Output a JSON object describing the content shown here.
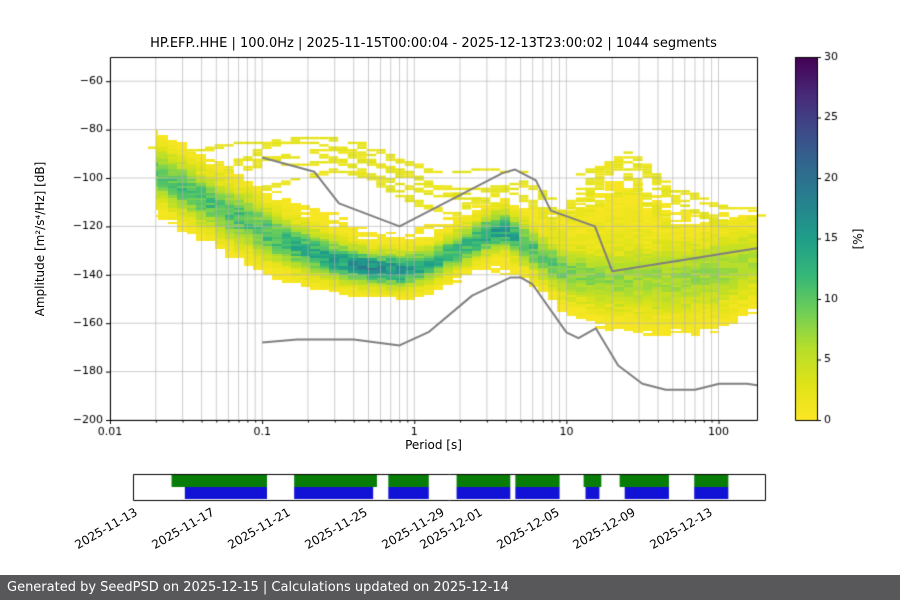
{
  "chart_data": {
    "type": "heatmap",
    "title": "HP.EFP..HHE | 100.0Hz | 2025-11-15T00:00:04 - 2025-12-13T23:00:02 | 1044 segments",
    "xlabel": "Period [s]",
    "ylabel": "Amplitude [m²/s⁴/Hz] [dB]",
    "xscale": "log",
    "xlim": [
      0.01,
      179
    ],
    "ylim": [
      -200,
      -50
    ],
    "grid": true,
    "xticks": [
      0.01,
      0.1,
      1,
      10,
      100
    ],
    "xtick_labels": [
      "0.01",
      "0.1",
      "1",
      "10",
      "100"
    ],
    "yticks": [
      -60,
      -80,
      -100,
      -120,
      -140,
      -160,
      -180,
      -200
    ],
    "ytick_labels": [
      "−60",
      "−80",
      "−100",
      "−120",
      "−140",
      "−160",
      "−180",
      "−200"
    ],
    "colorbar": {
      "label": "[%]",
      "min": 0,
      "max": 30,
      "ticks": [
        0,
        5,
        10,
        15,
        20,
        25,
        30
      ],
      "colormap": "viridis_r",
      "stops": [
        "#440154",
        "#482878",
        "#3e4a89",
        "#31688e",
        "#26828e",
        "#1f9e89",
        "#35b779",
        "#6ece58",
        "#b5de2b",
        "#dfe318",
        "#fde725"
      ]
    },
    "noise_models": {
      "color": "#7f7f7f",
      "nhnm": [
        [
          0.1,
          -91.5
        ],
        [
          0.22,
          -97.4
        ],
        [
          0.32,
          -110.5
        ],
        [
          0.8,
          -120
        ],
        [
          3.8,
          -98
        ],
        [
          4.6,
          -96.5
        ],
        [
          6.3,
          -101
        ],
        [
          7.9,
          -113.5
        ],
        [
          15.4,
          -120
        ],
        [
          20,
          -138.5
        ],
        [
          179,
          -129
        ]
      ],
      "nlnm": [
        [
          0.1,
          -168
        ],
        [
          0.17,
          -166.7
        ],
        [
          0.4,
          -166.7
        ],
        [
          0.8,
          -169.2
        ],
        [
          1.24,
          -163.7
        ],
        [
          2.4,
          -148.6
        ],
        [
          4.3,
          -141.1
        ],
        [
          5,
          -141.1
        ],
        [
          6,
          -144
        ],
        [
          10,
          -163.8
        ],
        [
          12,
          -166.2
        ],
        [
          15.6,
          -162.1
        ],
        [
          21.9,
          -177.5
        ],
        [
          31.6,
          -185
        ],
        [
          45,
          -187.5
        ],
        [
          70,
          -187.5
        ],
        [
          101,
          -185
        ],
        [
          154,
          -185
        ],
        [
          179,
          -185.6
        ]
      ]
    },
    "ppsd": {
      "period_range": [
        0.02,
        179
      ],
      "mode": [
        [
          0.02,
          -98
        ],
        [
          0.03,
          -104
        ],
        [
          0.05,
          -112
        ],
        [
          0.08,
          -118
        ],
        [
          0.1,
          -122
        ],
        [
          0.15,
          -127
        ],
        [
          0.2,
          -130
        ],
        [
          0.3,
          -134
        ],
        [
          0.5,
          -137
        ],
        [
          0.8,
          -138
        ],
        [
          1.2,
          -136
        ],
        [
          2,
          -129
        ],
        [
          3,
          -123
        ],
        [
          3.8,
          -121
        ],
        [
          5,
          -126
        ],
        [
          7,
          -133
        ],
        [
          10,
          -139
        ],
        [
          15,
          -141
        ],
        [
          25,
          -142
        ],
        [
          50,
          -141
        ],
        [
          100,
          -139
        ],
        [
          179,
          -134
        ]
      ],
      "peak": [
        [
          0.02,
          10
        ],
        [
          0.05,
          11
        ],
        [
          0.1,
          11
        ],
        [
          0.3,
          14
        ],
        [
          0.5,
          17
        ],
        [
          0.8,
          16
        ],
        [
          1.2,
          13
        ],
        [
          2,
          12
        ],
        [
          3,
          14
        ],
        [
          3.8,
          15
        ],
        [
          5,
          12
        ],
        [
          7,
          10
        ],
        [
          10,
          9
        ],
        [
          15,
          8
        ],
        [
          25,
          7
        ],
        [
          50,
          7
        ],
        [
          100,
          7
        ],
        [
          179,
          6
        ]
      ],
      "sigma": [
        [
          0.02,
          7
        ],
        [
          0.1,
          7
        ],
        [
          0.5,
          4.5
        ],
        [
          0.8,
          4.5
        ],
        [
          2,
          5
        ],
        [
          3.8,
          5
        ],
        [
          7,
          6
        ],
        [
          10,
          7
        ],
        [
          25,
          9
        ],
        [
          50,
          10
        ],
        [
          100,
          10
        ],
        [
          179,
          9
        ]
      ],
      "halo_up": [
        [
          0.02,
          -86
        ],
        [
          0.05,
          -93
        ],
        [
          0.1,
          -100
        ],
        [
          0.3,
          -112
        ],
        [
          0.5,
          -118
        ],
        [
          0.8,
          -120
        ],
        [
          1.5,
          -115
        ],
        [
          3,
          -107
        ],
        [
          5,
          -108
        ],
        [
          8,
          -112
        ],
        [
          12,
          -108
        ],
        [
          20,
          -101
        ],
        [
          30,
          -100
        ],
        [
          50,
          -110
        ],
        [
          100,
          -116
        ],
        [
          179,
          -118
        ]
      ],
      "halo_down": [
        [
          0.02,
          -116
        ],
        [
          0.1,
          -136
        ],
        [
          0.3,
          -144
        ],
        [
          0.5,
          -147
        ],
        [
          0.8,
          -148
        ],
        [
          1.5,
          -146
        ],
        [
          3,
          -140
        ],
        [
          5,
          -142
        ],
        [
          8,
          -150
        ],
        [
          12,
          -155
        ],
        [
          20,
          -158
        ],
        [
          30,
          -160
        ],
        [
          50,
          -159
        ],
        [
          100,
          -155
        ],
        [
          179,
          -148
        ]
      ],
      "halo_peak": [
        [
          0.02,
          1.6
        ],
        [
          0.1,
          1.6
        ],
        [
          1,
          1.6
        ],
        [
          5,
          1.8
        ],
        [
          10,
          2.2
        ],
        [
          20,
          3
        ],
        [
          30,
          2.6
        ],
        [
          50,
          2
        ],
        [
          179,
          1.6
        ]
      ]
    },
    "outlier_traces": [
      [
        [
          0.05,
          -100
        ],
        [
          0.1,
          -88
        ],
        [
          0.2,
          -83
        ],
        [
          0.4,
          -85
        ],
        [
          0.8,
          -93
        ],
        [
          1.5,
          -98
        ],
        [
          3,
          -96
        ],
        [
          5,
          -98
        ]
      ],
      [
        [
          0.07,
          -97
        ],
        [
          0.15,
          -90
        ],
        [
          0.3,
          -88
        ],
        [
          0.6,
          -95
        ],
        [
          1.2,
          -103
        ],
        [
          2.5,
          -105
        ]
      ],
      [
        [
          0.1,
          -105
        ],
        [
          0.3,
          -97
        ],
        [
          0.7,
          -101
        ],
        [
          1.5,
          -108
        ],
        [
          3,
          -105
        ],
        [
          5,
          -102
        ],
        [
          8,
          -109
        ]
      ],
      [
        [
          0.04,
          -95
        ],
        [
          0.1,
          -92
        ],
        [
          0.25,
          -90
        ],
        [
          0.5,
          -99
        ],
        [
          1,
          -110
        ],
        [
          2,
          -116
        ]
      ],
      [
        [
          8,
          -118
        ],
        [
          12,
          -108
        ],
        [
          20,
          -92
        ],
        [
          30,
          -95
        ],
        [
          50,
          -108
        ],
        [
          80,
          -115
        ],
        [
          120,
          -119
        ],
        [
          178,
          -116
        ]
      ],
      [
        [
          10,
          -121
        ],
        [
          15,
          -105
        ],
        [
          25,
          -90
        ],
        [
          40,
          -100
        ],
        [
          60,
          -112
        ],
        [
          100,
          -120
        ],
        [
          150,
          -122
        ]
      ],
      [
        [
          7,
          -112
        ],
        [
          12,
          -115
        ],
        [
          20,
          -108
        ],
        [
          35,
          -104
        ],
        [
          60,
          -106
        ],
        [
          100,
          -112
        ],
        [
          170,
          -113
        ]
      ],
      [
        [
          2,
          -113
        ],
        [
          4,
          -104
        ],
        [
          6,
          -110
        ],
        [
          10,
          -126
        ]
      ],
      [
        [
          0.02,
          -88
        ],
        [
          0.03,
          -90
        ],
        [
          0.06,
          -86
        ],
        [
          0.12,
          -85
        ],
        [
          0.25,
          -86
        ],
        [
          0.5,
          -91
        ]
      ],
      [
        [
          12,
          -100
        ],
        [
          18,
          -95
        ],
        [
          25,
          -97
        ],
        [
          35,
          -110
        ],
        [
          50,
          -121
        ]
      ],
      [
        [
          0.15,
          -95
        ],
        [
          0.4,
          -92
        ],
        [
          0.9,
          -98
        ],
        [
          2,
          -108
        ],
        [
          4,
          -112
        ]
      ]
    ]
  },
  "timeline": {
    "start": "2025-11-13",
    "end": "2025-12-16",
    "colors": {
      "green": "#077d07",
      "blue": "#1212d6"
    },
    "green_segments": [
      [
        0.061,
        0.212
      ],
      [
        0.255,
        0.386
      ],
      [
        0.404,
        0.468
      ],
      [
        0.512,
        0.597
      ],
      [
        0.605,
        0.675
      ],
      [
        0.713,
        0.741
      ],
      [
        0.77,
        0.848
      ],
      [
        0.888,
        0.942
      ]
    ],
    "blue_segments": [
      [
        0.082,
        0.212
      ],
      [
        0.255,
        0.38
      ],
      [
        0.404,
        0.468
      ],
      [
        0.512,
        0.597
      ],
      [
        0.605,
        0.675
      ],
      [
        0.716,
        0.738
      ],
      [
        0.778,
        0.848
      ],
      [
        0.888,
        0.942
      ]
    ],
    "labels": [
      {
        "text": "2025-11-13",
        "f": 0.0
      },
      {
        "text": "2025-11-17",
        "f": 0.1212
      },
      {
        "text": "2025-11-21",
        "f": 0.2424
      },
      {
        "text": "2025-11-25",
        "f": 0.3636
      },
      {
        "text": "2025-11-29",
        "f": 0.4848
      },
      {
        "text": "2025-12-01",
        "f": 0.5455
      },
      {
        "text": "2025-12-05",
        "f": 0.6667
      },
      {
        "text": "2025-12-09",
        "f": 0.7879
      },
      {
        "text": "2025-12-13",
        "f": 0.9091
      }
    ]
  },
  "footer": {
    "text": "Generated by SeedPSD on 2025-12-15 | Calculations updated on 2025-12-14",
    "bg": "#58585a"
  }
}
